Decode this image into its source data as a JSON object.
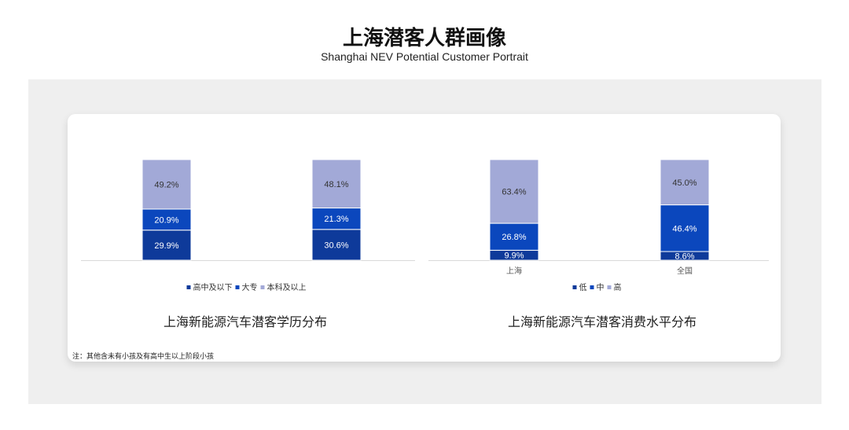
{
  "header": {
    "title": "上海潜客人群画像",
    "subtitle": "Shanghai NEV Potential Customer Portrait"
  },
  "note": "注：其他含未有小孩及有高中生以上阶段小孩",
  "colors": {
    "dark": "#0e3a9a",
    "mid": "#0b47bd",
    "light": "#a2a9d7"
  },
  "chart_data": [
    {
      "type": "bar",
      "stacked": true,
      "title": "上海新能源汽车潜客学历分布",
      "categories": [
        "",
        ""
      ],
      "series": [
        {
          "name": "高中及以下",
          "values": [
            29.9,
            30.6
          ]
        },
        {
          "name": "大专",
          "values": [
            20.9,
            21.3
          ]
        },
        {
          "name": "本科及以上",
          "values": [
            49.2,
            48.1
          ]
        }
      ],
      "ylim": [
        0,
        100
      ],
      "legend": "bottom",
      "grid": false
    },
    {
      "type": "bar",
      "stacked": true,
      "title": "上海新能源汽车潜客消费水平分布",
      "categories": [
        "上海",
        "全国"
      ],
      "series": [
        {
          "name": "低",
          "values": [
            9.9,
            8.6
          ]
        },
        {
          "name": "中",
          "values": [
            26.8,
            46.4
          ]
        },
        {
          "name": "高",
          "values": [
            63.4,
            45.0
          ]
        }
      ],
      "ylim": [
        0,
        100
      ],
      "legend": "bottom",
      "grid": false
    }
  ]
}
